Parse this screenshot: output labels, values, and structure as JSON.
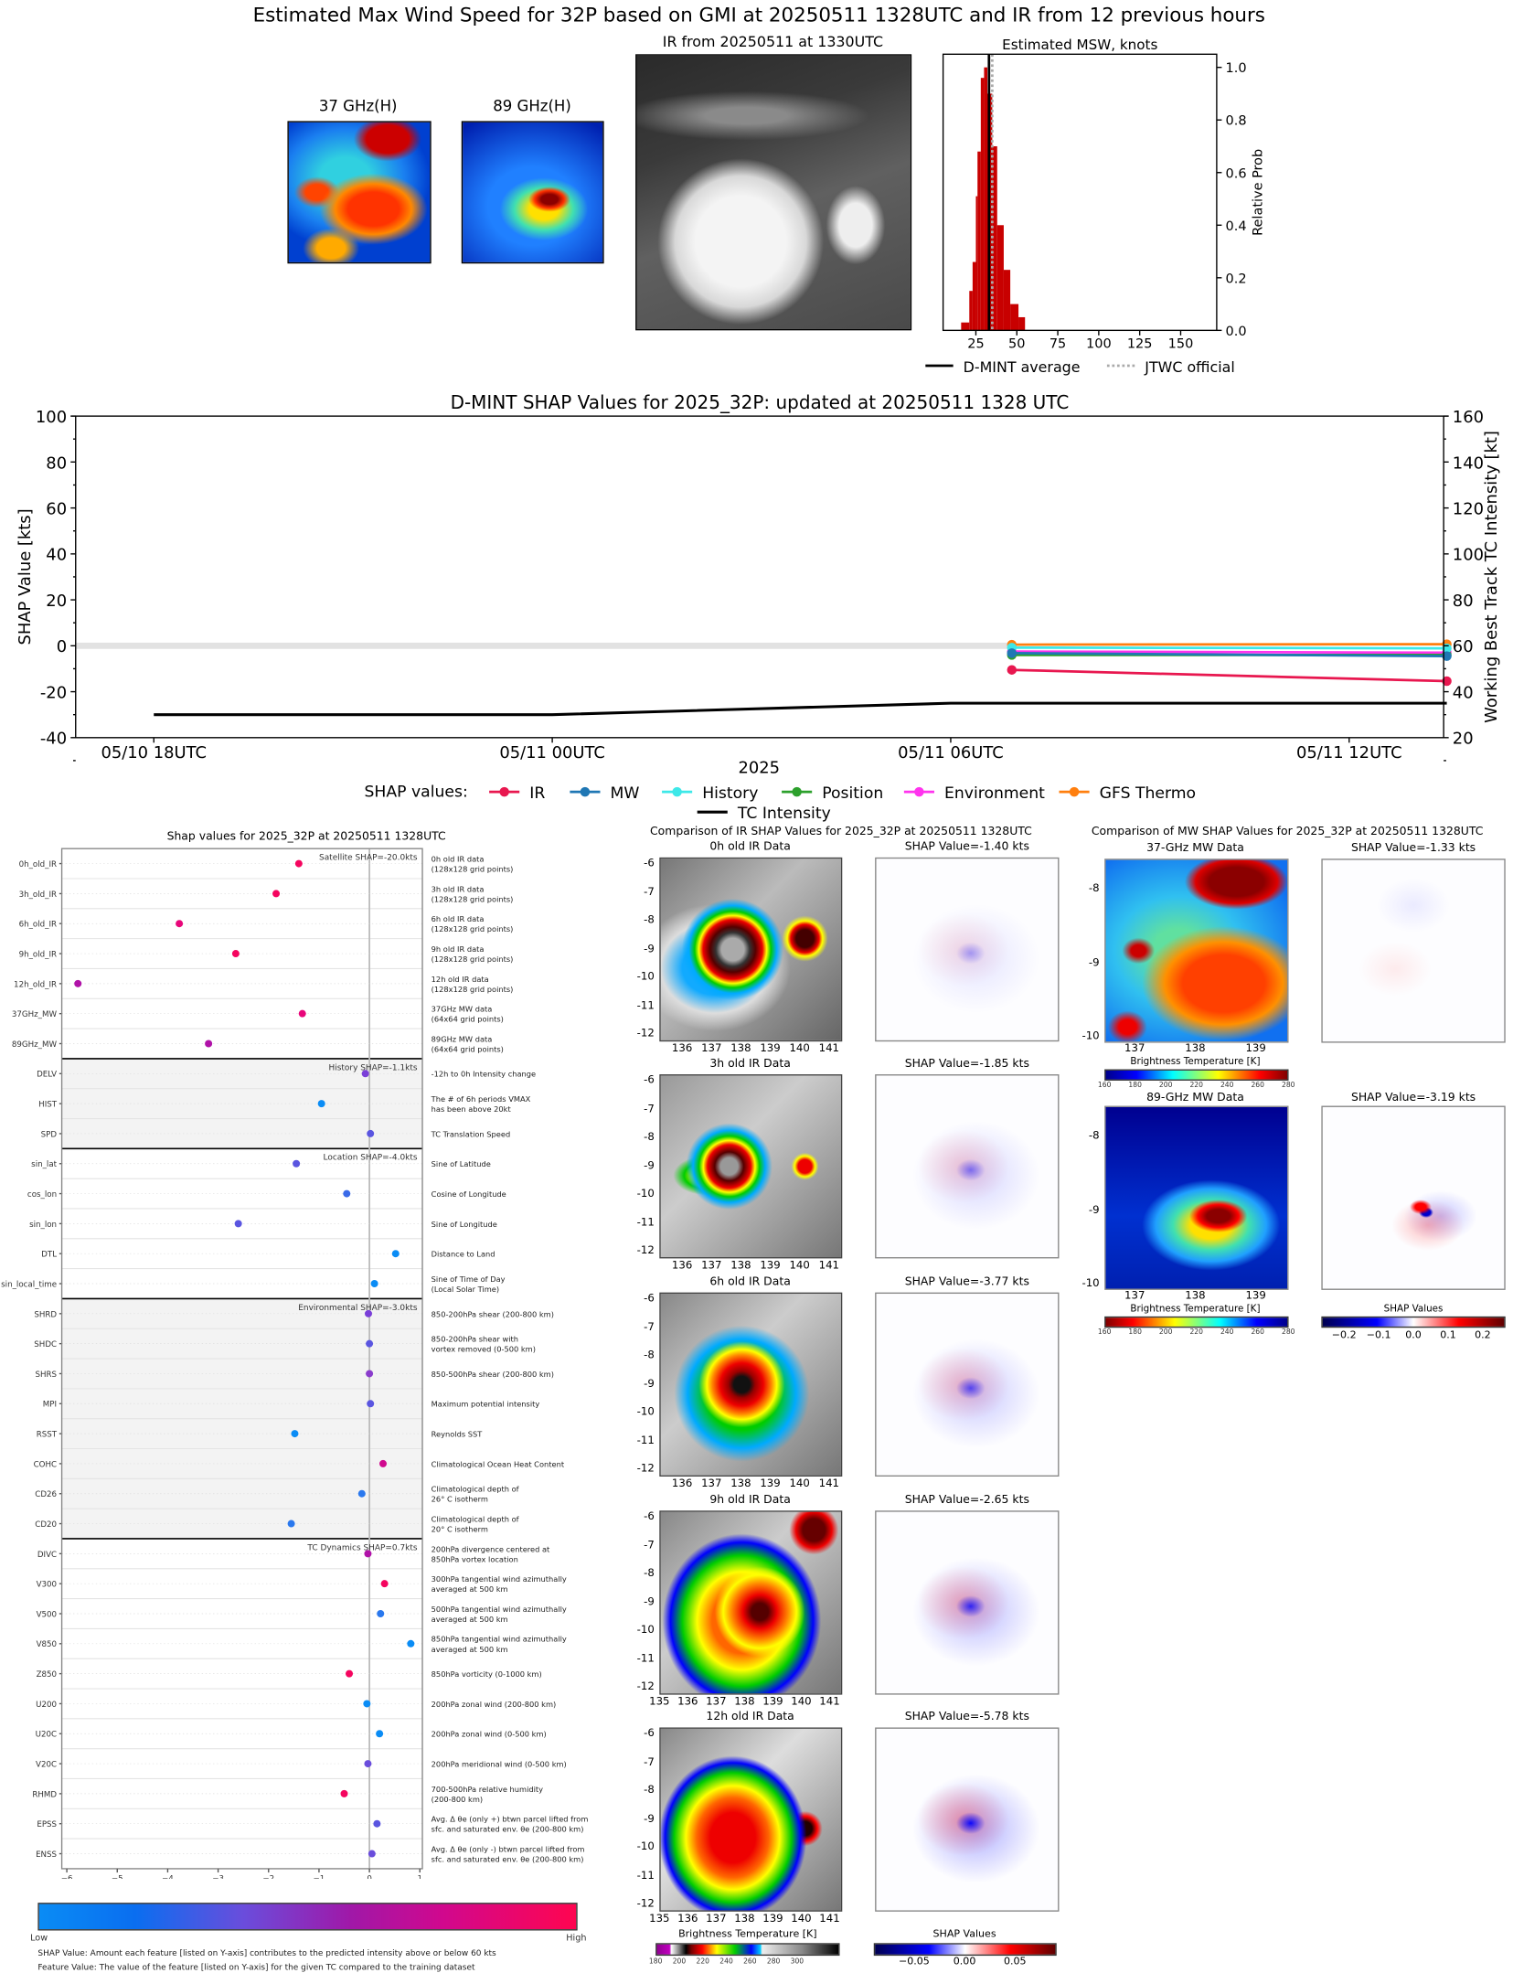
{
  "top": {
    "title": "Estimated Max Wind Speed for 32P based on GMI at 20250511 1328UTC and IR from 12 previous hours",
    "mw37_title": "37 GHz(H)",
    "mw89_title": "89 GHz(H)",
    "ir_title": "IR from 20250511 at 1330UTC"
  },
  "middle": {
    "title": "Comparison of IR SHAP Values for 2025_32P at 20250511 1328UTC",
    "panels": [
      {
        "title": "0h old IR Data",
        "shap_title": "SHAP Value=-1.40 kts",
        "xticks": [
          "136",
          "137",
          "138",
          "139",
          "140",
          "141"
        ]
      },
      {
        "title": "3h old IR Data",
        "shap_title": "SHAP Value=-1.85 kts",
        "xticks": [
          "136",
          "137",
          "138",
          "139",
          "140",
          "141"
        ]
      },
      {
        "title": "6h old IR Data",
        "shap_title": "SHAP Value=-3.77 kts",
        "xticks": [
          "136",
          "137",
          "138",
          "139",
          "140",
          "141"
        ]
      },
      {
        "title": "9h old IR Data",
        "shap_title": "SHAP Value=-2.65 kts",
        "xticks": [
          "135",
          "136",
          "137",
          "138",
          "139",
          "140",
          "141"
        ]
      },
      {
        "title": "12h old IR Data",
        "shap_title": "SHAP Value=-5.78 kts",
        "xticks": [
          "135",
          "136",
          "137",
          "138",
          "139",
          "140",
          "141"
        ]
      }
    ],
    "yticks": [
      "-6",
      "-7",
      "-8",
      "-9",
      "-10",
      "-11",
      "-12"
    ],
    "bt_cbar_label": "Brightness Temperature [K]",
    "bt_cbar_ticks": [
      "180",
      "200",
      "220",
      "240",
      "260",
      "280",
      "300"
    ],
    "shap_cbar_label": "SHAP Values",
    "shap_cbar_ticks": [
      "−0.05",
      "0.00",
      "0.05"
    ]
  },
  "right": {
    "title": "Comparison of MW SHAP Values for 2025_32P at 20250511 1328UTC",
    "mw37_title": "37-GHz MW Data",
    "mw37_shap_title": "SHAP Value=-1.33 kts",
    "mw89_title": "89-GHz MW Data",
    "mw89_shap_title": "SHAP Value=-3.19 kts",
    "yticks": [
      "-8",
      "-9",
      "-10"
    ],
    "xticks": [
      "137",
      "138",
      "139"
    ],
    "bt_cbar_label": "Brightness Temperature [K]",
    "bt_cbar_ticks": [
      "160",
      "180",
      "200",
      "220",
      "240",
      "260",
      "280"
    ],
    "shap_cbar_label": "SHAP Values",
    "shap_cbar_ticks": [
      "−0.2",
      "−0.1",
      "0.0",
      "0.1",
      "0.2"
    ]
  },
  "footer": {
    "low": "Low",
    "high": "High",
    "note1": "SHAP Value: Amount each feature [listed on Y-axis] contributes to the predicted intensity above or below 60 kts",
    "note2": "Feature Value: The value of the feature [listed on Y-axis] for the given TC compared to the training dataset"
  },
  "chart_data": [
    {
      "type": "bar",
      "title": "Estimated MSW, knots",
      "ylabel": "Relative Prob",
      "xlim": [
        5,
        172
      ],
      "ylim": [
        0,
        1.05
      ],
      "xticks": [
        "25",
        "50",
        "75",
        "100",
        "125",
        "150"
      ],
      "yticks": [
        "0.0",
        "0.2",
        "0.4",
        "0.6",
        "0.8",
        "1.0"
      ],
      "bins": [
        {
          "from": 16,
          "to": 21,
          "value": 0.03
        },
        {
          "from": 21,
          "to": 23,
          "value": 0.15
        },
        {
          "from": 23,
          "to": 25,
          "value": 0.26
        },
        {
          "from": 25,
          "to": 26,
          "value": 0.51
        },
        {
          "from": 26,
          "to": 28,
          "value": 0.68
        },
        {
          "from": 28,
          "to": 30,
          "value": 0.96
        },
        {
          "from": 30,
          "to": 32,
          "value": 1.0
        },
        {
          "from": 32,
          "to": 35,
          "value": 0.9
        },
        {
          "from": 35,
          "to": 38,
          "value": 0.7
        },
        {
          "from": 38,
          "to": 42,
          "value": 0.4
        },
        {
          "from": 42,
          "to": 46,
          "value": 0.23
        },
        {
          "from": 46,
          "to": 51,
          "value": 0.1
        },
        {
          "from": 51,
          "to": 55,
          "value": 0.05
        }
      ],
      "bar_color": "#c80000",
      "dmint_average": 33,
      "jtwc_official": 35,
      "legend": [
        "D-MINT average",
        "JTWC official"
      ]
    },
    {
      "type": "line",
      "title": "D-MINT SHAP Values for 2025_32P: updated at 20250511 1328 UTC",
      "xlabel": "2025",
      "ylabel": "SHAP Value [kts]",
      "y2label": "Working Best Track TC Intensity [kt]",
      "ylim": [
        -40,
        100
      ],
      "y2lim": [
        20,
        160
      ],
      "xlim_hours": [
        -1.18,
        19.47
      ],
      "xticks": [
        {
          "hours": 0,
          "label": "05/10 18UTC"
        },
        {
          "hours": 6,
          "label": "05/11 00UTC"
        },
        {
          "hours": 12,
          "label": "05/11 06UTC"
        },
        {
          "hours": 18,
          "label": "05/11 12UTC"
        }
      ],
      "yticks": [
        "-40",
        "-20",
        "0",
        "20",
        "40",
        "60",
        "80",
        "100"
      ],
      "y2ticks": [
        "20",
        "40",
        "60",
        "80",
        "100",
        "120",
        "140",
        "160"
      ],
      "legend_title": "SHAP values:",
      "series": [
        {
          "name": "IR",
          "color": "#e8174f",
          "x": [
            12.92,
            19.47
          ],
          "y": [
            -10.5,
            -15.4
          ]
        },
        {
          "name": "MW",
          "color": "#1f77b4",
          "x": [
            12.92,
            19.47
          ],
          "y": [
            -3.2,
            -4.5
          ]
        },
        {
          "name": "History",
          "color": "#3de8e8",
          "x": [
            12.92,
            19.47
          ],
          "y": [
            -0.8,
            -1.1
          ]
        },
        {
          "name": "Position",
          "color": "#2ca02c",
          "x": [
            12.92,
            19.47
          ],
          "y": [
            -4.0,
            -4.0
          ]
        },
        {
          "name": "Environment",
          "color": "#ff33ee",
          "x": [
            12.92,
            19.47
          ],
          "y": [
            -2.5,
            -3.0
          ]
        },
        {
          "name": "GFS Thermo",
          "color": "#ff7f0e",
          "x": [
            12.92,
            19.47
          ],
          "y": [
            0.5,
            0.7
          ]
        }
      ],
      "tc_intensity": {
        "name": "TC Intensity",
        "color": "#000000",
        "x": [
          0,
          6,
          12,
          19.47
        ],
        "y": [
          30,
          30,
          35,
          35
        ]
      }
    },
    {
      "type": "scatter",
      "title": "Shap values for 2025_32P at 20250511 1328UTC",
      "xlabel": "SHAP Value [kts]",
      "xlim": [
        -6.1,
        1.05
      ],
      "xticks": [
        "−6",
        "−5",
        "−4",
        "−3",
        "−2",
        "−1",
        "0",
        "1"
      ],
      "groups": [
        {
          "label": "Satellite SHAP=-20.0kts",
          "start": 0,
          "end": 7,
          "shaded": false
        },
        {
          "label": "History SHAP=-1.1kts",
          "start": 7,
          "end": 10,
          "shaded": true
        },
        {
          "label": "Location SHAP=-4.0kts",
          "start": 10,
          "end": 15,
          "shaded": false
        },
        {
          "label": "Environmental SHAP=-3.0kts",
          "start": 15,
          "end": 23,
          "shaded": true
        },
        {
          "label": "TC Dynamics SHAP=0.7kts",
          "start": 23,
          "end": 34,
          "shaded": false
        }
      ],
      "features": [
        {
          "name": "0h_old_IR",
          "desc": [
            "0h old IR data",
            "(128x128 grid points)"
          ],
          "value": -1.4,
          "color": "#f5055f"
        },
        {
          "name": "3h_old_IR",
          "desc": [
            "3h old IR data",
            "(128x128 grid points)"
          ],
          "value": -1.85,
          "color": "#f5055f"
        },
        {
          "name": "6h_old_IR",
          "desc": [
            "6h old IR data",
            "(128x128 grid points)"
          ],
          "value": -3.77,
          "color": "#e8067a"
        },
        {
          "name": "9h_old_IR",
          "desc": [
            "9h old IR data",
            "(128x128 grid points)"
          ],
          "value": -2.65,
          "color": "#f5055f"
        },
        {
          "name": "12h_old_IR",
          "desc": [
            "12h old IR data",
            "(128x128 grid points)"
          ],
          "value": -5.78,
          "color": "#b012a8"
        },
        {
          "name": "37GHz_MW",
          "desc": [
            "37GHz MW data",
            "(64x64 grid points)"
          ],
          "value": -1.33,
          "color": "#e8067a"
        },
        {
          "name": "89GHz_MW",
          "desc": [
            "89GHz MW data",
            "(64x64 grid points)"
          ],
          "value": -3.19,
          "color": "#b012a8"
        },
        {
          "name": "DELV",
          "desc": [
            "-12h to 0h Intensity change"
          ],
          "value": -0.08,
          "color": "#7a3fd8"
        },
        {
          "name": "HIST",
          "desc": [
            "The # of 6h periods VMAX",
            "has been above 20kt"
          ],
          "value": -0.95,
          "color": "#0a8cf5"
        },
        {
          "name": "SPD",
          "desc": [
            "TC Translation Speed"
          ],
          "value": 0.02,
          "color": "#5a55e0"
        },
        {
          "name": "sin_lat",
          "desc": [
            "Sine of Latitude"
          ],
          "value": -1.45,
          "color": "#5a55e0"
        },
        {
          "name": "cos_lon",
          "desc": [
            "Cosine of Longitude"
          ],
          "value": -0.45,
          "color": "#3a6ae8"
        },
        {
          "name": "sin_lon",
          "desc": [
            "Sine of Longitude"
          ],
          "value": -2.6,
          "color": "#5a55e0"
        },
        {
          "name": "DTL",
          "desc": [
            "Distance to Land"
          ],
          "value": 0.52,
          "color": "#0a8cf5"
        },
        {
          "name": "sin_local_time",
          "desc": [
            "Sine of Time of Day",
            "(Local Solar Time)"
          ],
          "value": 0.1,
          "color": "#0a8cf5"
        },
        {
          "name": "SHRD",
          "desc": [
            "850-200hPa shear (200-800 km)"
          ],
          "value": -0.02,
          "color": "#7a3fd8"
        },
        {
          "name": "SHDC",
          "desc": [
            "850-200hPa shear with",
            "vortex removed (0-500 km)"
          ],
          "value": 0.0,
          "color": "#5a55e0"
        },
        {
          "name": "SHRS",
          "desc": [
            "850-500hPa shear (200-800 km)"
          ],
          "value": 0.0,
          "color": "#8a3ccc"
        },
        {
          "name": "MPI",
          "desc": [
            "Maximum potential intensity"
          ],
          "value": 0.02,
          "color": "#5a55e0"
        },
        {
          "name": "RSST",
          "desc": [
            "Reynolds SST"
          ],
          "value": -1.48,
          "color": "#0a8cf5"
        },
        {
          "name": "COHC",
          "desc": [
            "Climatological Ocean Heat Content"
          ],
          "value": 0.27,
          "color": "#d0088e"
        },
        {
          "name": "CD26",
          "desc": [
            "Climatological depth of",
            "26° C isotherm"
          ],
          "value": -0.15,
          "color": "#2a78ee"
        },
        {
          "name": "CD20",
          "desc": [
            "Climatological depth of",
            "20° C isotherm"
          ],
          "value": -1.55,
          "color": "#2a78ee"
        },
        {
          "name": "DIVC",
          "desc": [
            "200hPa divergence centered at",
            "850hPa vortex location"
          ],
          "value": -0.03,
          "color": "#b012a8"
        },
        {
          "name": "V300",
          "desc": [
            "300hPa tangential wind azimuthally",
            "averaged at 500 km"
          ],
          "value": 0.3,
          "color": "#f5055f"
        },
        {
          "name": "V500",
          "desc": [
            "500hPa tangential wind azimuthally",
            "averaged at 500 km"
          ],
          "value": 0.22,
          "color": "#2a78ee"
        },
        {
          "name": "V850",
          "desc": [
            "850hPa tangential wind azimuthally",
            "averaged at 500 km"
          ],
          "value": 0.82,
          "color": "#0a8cf5"
        },
        {
          "name": "Z850",
          "desc": [
            "850hPa vorticity (0-1000 km)"
          ],
          "value": -0.4,
          "color": "#f5055f"
        },
        {
          "name": "U200",
          "desc": [
            "200hPa zonal wind (200-800 km)"
          ],
          "value": -0.05,
          "color": "#0a8cf5"
        },
        {
          "name": "U20C",
          "desc": [
            "200hPa zonal wind (0-500 km)"
          ],
          "value": 0.2,
          "color": "#0a8cf5"
        },
        {
          "name": "V20C",
          "desc": [
            "200hPa meridional wind (0-500 km)"
          ],
          "value": -0.03,
          "color": "#6a4ddc"
        },
        {
          "name": "RHMD",
          "desc": [
            "700-500hPa relative humidity",
            "(200-800 km)"
          ],
          "value": -0.5,
          "color": "#f5055f"
        },
        {
          "name": "EPSS",
          "desc": [
            "Avg. Δ θe (only +) btwn parcel lifted from",
            "sfc. and saturated env. θe (200-800 km)"
          ],
          "value": 0.15,
          "color": "#5a55e0"
        },
        {
          "name": "ENSS",
          "desc": [
            "Avg. Δ θe (only -) btwn parcel lifted from",
            "sfc. and saturated env. θe (200-800 km)"
          ],
          "value": 0.05,
          "color": "#6a4ddc"
        }
      ]
    }
  ]
}
